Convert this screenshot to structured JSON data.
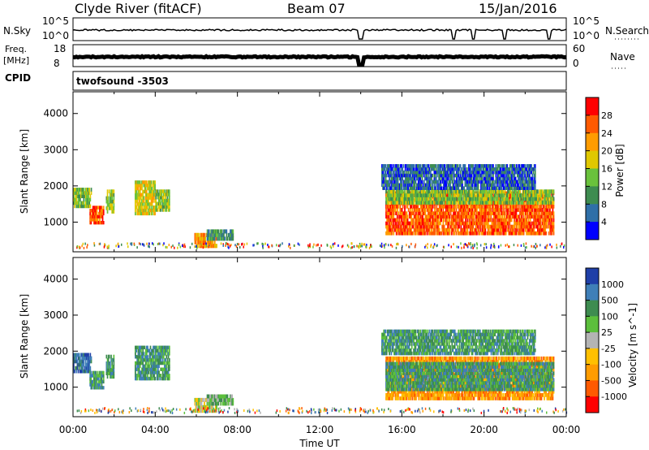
{
  "header": {
    "station": "Clyde River (fitACF)",
    "beam": "Beam 07",
    "date": "15/Jan/2016"
  },
  "panels": {
    "nsky": {
      "left_label": "N.Sky",
      "left_ticks": [
        "10^5",
        "10^0"
      ],
      "right_ticks": [
        "10^5",
        "10^0"
      ],
      "right_label": "N.Search"
    },
    "freq": {
      "left_label_1": "Freq.",
      "left_label_2": "[MHz]",
      "left_ticks": [
        "18",
        "8"
      ],
      "right_ticks": [
        "60",
        "0"
      ],
      "right_label": "Nave",
      "cpid_label": "CPID",
      "cpid_text": "twofsound -3503"
    }
  },
  "chart_data": [
    {
      "type": "heatmap",
      "parameter": "power",
      "ylabel": "Slant Range [km]",
      "ylim": [
        180,
        4600
      ],
      "yticks": [
        "1000",
        "2000",
        "3000",
        "4000"
      ],
      "xlim_hours": [
        0,
        24
      ],
      "colorbar": {
        "label": "Power [dB]",
        "ticks": [
          "28",
          "24",
          "20",
          "16",
          "12",
          "8",
          "4"
        ],
        "colors": [
          "#ff0000",
          "#ff5a00",
          "#ff9c00",
          "#e0c800",
          "#6ac23c",
          "#3e8c50",
          "#2f6fa8",
          "#0000ff"
        ]
      },
      "regions": [
        {
          "t0": 0.0,
          "t1": 0.9,
          "r0": 1400,
          "r1": 1950,
          "level": 3
        },
        {
          "t0": 0.8,
          "t1": 1.5,
          "r0": 950,
          "r1": 1450,
          "level": 6
        },
        {
          "t0": 1.6,
          "t1": 2.0,
          "r0": 1250,
          "r1": 1900,
          "level": 3
        },
        {
          "t0": 3.0,
          "t1": 4.0,
          "r0": 1200,
          "r1": 2150,
          "level": 4
        },
        {
          "t0": 4.0,
          "t1": 4.7,
          "r0": 1300,
          "r1": 1900,
          "level": 3
        },
        {
          "t0": 5.9,
          "t1": 7.0,
          "r0": 300,
          "r1": 700,
          "level": 5
        },
        {
          "t0": 6.5,
          "t1": 7.8,
          "r0": 500,
          "r1": 800,
          "level": 2
        },
        {
          "t0": 15.2,
          "t1": 23.4,
          "r0": 650,
          "r1": 1850,
          "level": 6
        },
        {
          "t0": 15.2,
          "t1": 23.4,
          "r0": 1500,
          "r1": 1900,
          "level": 3
        },
        {
          "t0": 15.0,
          "t1": 22.5,
          "r0": 1900,
          "r1": 2600,
          "level": 1
        }
      ]
    },
    {
      "type": "heatmap",
      "parameter": "velocity",
      "ylabel": "Slant Range [km]",
      "ylim": [
        180,
        4600
      ],
      "yticks": [
        "1000",
        "2000",
        "3000",
        "4000"
      ],
      "xlim_hours": [
        0,
        24
      ],
      "xticks": [
        "00:00",
        "04:00",
        "08:00",
        "12:00",
        "16:00",
        "20:00",
        "00:00"
      ],
      "xlabel": "Time UT",
      "colorbar": {
        "label": "Velocity [m s^-1]",
        "ticks": [
          "1000",
          "500",
          "100",
          "25",
          "-25",
          "-100",
          "-500",
          "-1000"
        ],
        "colors": [
          "#1f3fa8",
          "#3f7fb8",
          "#3e8c50",
          "#5cbf3c",
          "#b4b4b4",
          "#ffc000",
          "#ff9c00",
          "#ff5a00",
          "#ff0000"
        ]
      },
      "regions": [
        {
          "t0": 0.0,
          "t1": 0.9,
          "r0": 1400,
          "r1": 1950,
          "level": 1
        },
        {
          "t0": 0.8,
          "t1": 1.5,
          "r0": 950,
          "r1": 1450,
          "level": 2
        },
        {
          "t0": 1.6,
          "t1": 2.0,
          "r0": 1250,
          "r1": 1900,
          "level": 2
        },
        {
          "t0": 3.0,
          "t1": 4.7,
          "r0": 1200,
          "r1": 2150,
          "level": 2
        },
        {
          "t0": 5.9,
          "t1": 7.0,
          "r0": 300,
          "r1": 700,
          "level": 4
        },
        {
          "t0": 6.5,
          "t1": 7.8,
          "r0": 500,
          "r1": 800,
          "level": 3
        },
        {
          "t0": 15.2,
          "t1": 23.4,
          "r0": 650,
          "r1": 1850,
          "level": 6
        },
        {
          "t0": 15.2,
          "t1": 23.4,
          "r0": 900,
          "r1": 1700,
          "level": 2
        },
        {
          "t0": 15.0,
          "t1": 22.5,
          "r0": 1900,
          "r1": 2600,
          "level": 2
        }
      ]
    }
  ]
}
